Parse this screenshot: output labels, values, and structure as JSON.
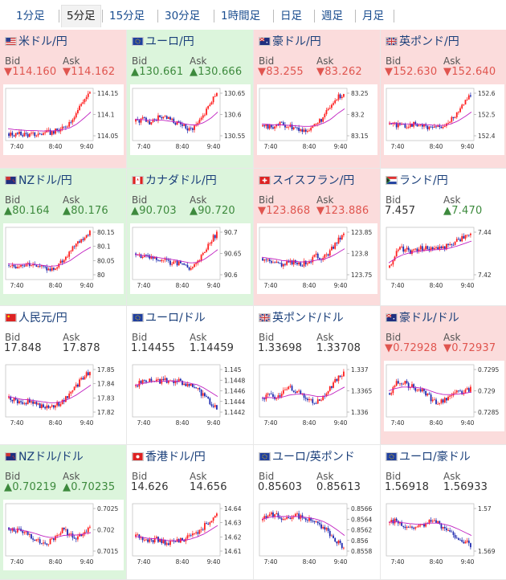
{
  "tabs": [
    "1分足",
    "5分足",
    "15分足",
    "30分足",
    "1時間足",
    "日足",
    "週足",
    "月足"
  ],
  "active_tab": 1,
  "labels": {
    "bid": "Bid",
    "ask": "Ask"
  },
  "colors": {
    "candle_up": "#ff2020",
    "candle_down": "#1f2bb0",
    "ma": "#c020c0",
    "bg_down": "#fbdcdc",
    "bg_up": "#dcf5dc",
    "price_down": "#e0554f",
    "price_up": "#3d8a3d"
  },
  "pairs": [
    {
      "name": "米ドル/円",
      "flag": "us",
      "bg": "down",
      "bid": "▼114.160",
      "ask": "▼114.162",
      "bid_dir": "red",
      "ask_dir": "red",
      "ticks": [
        "114.15",
        "114.1",
        "114.05"
      ],
      "xticks": [
        "7:40",
        "8:40",
        "9:40"
      ],
      "chart_data": {
        "type": "candlestick",
        "trend": [
          0.1,
          0.08,
          0.09,
          0.07,
          0.08,
          0.1,
          0.12,
          0.15,
          0.2,
          0.35,
          0.55,
          0.8,
          0.95
        ],
        "ma": [
          0.2,
          0.18,
          0.17,
          0.16,
          0.16,
          0.15,
          0.15,
          0.16,
          0.18,
          0.22,
          0.3,
          0.42,
          0.55
        ]
      }
    },
    {
      "name": "ユーロ/円",
      "flag": "eu",
      "bg": "up",
      "bid": "▲130.661",
      "ask": "▲130.666",
      "bid_dir": "green",
      "ask_dir": "green",
      "ticks": [
        "130.65",
        "130.6",
        "130.55"
      ],
      "xticks": [
        "7:40",
        "8:40",
        "9:40"
      ],
      "chart_data": {
        "type": "candlestick",
        "trend": [
          0.35,
          0.4,
          0.3,
          0.42,
          0.45,
          0.38,
          0.32,
          0.25,
          0.18,
          0.3,
          0.5,
          0.75,
          0.95
        ],
        "ma": [
          0.4,
          0.39,
          0.38,
          0.38,
          0.38,
          0.36,
          0.34,
          0.31,
          0.28,
          0.28,
          0.33,
          0.42,
          0.55
        ]
      }
    },
    {
      "name": "豪ドル/円",
      "flag": "au",
      "bg": "down",
      "bid": "▼83.255",
      "ask": "▼83.262",
      "bid_dir": "red",
      "ask_dir": "red",
      "ticks": [
        "83.25",
        "83.2",
        "83.15"
      ],
      "xticks": [
        "7:40",
        "8:40",
        "9:40"
      ],
      "chart_data": {
        "type": "candlestick",
        "trend": [
          0.25,
          0.22,
          0.28,
          0.3,
          0.25,
          0.2,
          0.15,
          0.22,
          0.3,
          0.45,
          0.65,
          0.85,
          0.95
        ],
        "ma": [
          0.3,
          0.29,
          0.28,
          0.28,
          0.27,
          0.26,
          0.25,
          0.25,
          0.27,
          0.32,
          0.4,
          0.52,
          0.62
        ]
      }
    },
    {
      "name": "英ポンド/円",
      "flag": "gb",
      "bg": "down",
      "bid": "▼152.630",
      "ask": "▼152.640",
      "bid_dir": "red",
      "ask_dir": "red",
      "ticks": [
        "152.6",
        "152.5",
        "152.4"
      ],
      "xticks": [
        "7:40",
        "8:40",
        "9:40"
      ],
      "chart_data": {
        "type": "candlestick",
        "trend": [
          0.3,
          0.28,
          0.25,
          0.28,
          0.3,
          0.26,
          0.24,
          0.22,
          0.25,
          0.35,
          0.55,
          0.75,
          0.92
        ],
        "ma": [
          0.32,
          0.31,
          0.3,
          0.3,
          0.3,
          0.29,
          0.28,
          0.27,
          0.27,
          0.3,
          0.36,
          0.45,
          0.55
        ]
      }
    },
    {
      "name": "NZドル/円",
      "flag": "nz",
      "bg": "up",
      "bid": "▲80.164",
      "ask": "▲80.176",
      "bid_dir": "green",
      "ask_dir": "green",
      "ticks": [
        "80.15",
        "80.1",
        "80.05",
        "80"
      ],
      "xticks": [
        "7:40",
        "8:40",
        "9:40"
      ],
      "chart_data": {
        "type": "candlestick",
        "trend": [
          0.25,
          0.22,
          0.28,
          0.3,
          0.24,
          0.18,
          0.15,
          0.22,
          0.35,
          0.55,
          0.7,
          0.82,
          0.92
        ],
        "ma": [
          0.28,
          0.27,
          0.27,
          0.28,
          0.27,
          0.25,
          0.23,
          0.24,
          0.28,
          0.35,
          0.45,
          0.55,
          0.63
        ]
      }
    },
    {
      "name": "カナダドル/円",
      "flag": "ca",
      "bg": "up",
      "bid": "▲90.703",
      "ask": "▲90.720",
      "bid_dir": "green",
      "ask_dir": "green",
      "ticks": [
        "90.7",
        "90.65",
        "90.6"
      ],
      "xticks": [
        "7:40",
        "8:40",
        "9:40"
      ],
      "chart_data": {
        "type": "candlestick",
        "trend": [
          0.5,
          0.45,
          0.4,
          0.38,
          0.35,
          0.32,
          0.3,
          0.25,
          0.2,
          0.3,
          0.5,
          0.75,
          0.92
        ],
        "ma": [
          0.48,
          0.46,
          0.44,
          0.42,
          0.4,
          0.38,
          0.36,
          0.33,
          0.3,
          0.31,
          0.37,
          0.47,
          0.58
        ]
      }
    },
    {
      "name": "スイスフラン/円",
      "flag": "ch",
      "bg": "down",
      "bid": "▼123.868",
      "ask": "▼123.886",
      "bid_dir": "red",
      "ask_dir": "red",
      "ticks": [
        "123.85",
        "123.8",
        "123.75"
      ],
      "xticks": [
        "7:40",
        "8:40",
        "9:40"
      ],
      "chart_data": {
        "type": "candlestick",
        "trend": [
          0.4,
          0.35,
          0.3,
          0.25,
          0.3,
          0.32,
          0.28,
          0.35,
          0.45,
          0.4,
          0.55,
          0.75,
          0.9
        ],
        "ma": [
          0.42,
          0.4,
          0.38,
          0.35,
          0.34,
          0.33,
          0.32,
          0.33,
          0.36,
          0.38,
          0.43,
          0.51,
          0.6
        ]
      }
    },
    {
      "name": "ランド/円",
      "flag": "za",
      "bg": "neutral",
      "bid": "7.457",
      "ask": "▲7.470",
      "bid_dir": "plain",
      "ask_dir": "green",
      "ticks": [
        "7.44",
        "7.42"
      ],
      "xticks": [
        "7:40",
        "8:40",
        "9:40"
      ],
      "chart_data": {
        "type": "candlestick",
        "trend": [
          0.2,
          0.55,
          0.6,
          0.55,
          0.58,
          0.62,
          0.6,
          0.58,
          0.62,
          0.7,
          0.78,
          0.85,
          0.92
        ],
        "ma": [
          0.3,
          0.4,
          0.47,
          0.51,
          0.54,
          0.56,
          0.57,
          0.58,
          0.59,
          0.62,
          0.66,
          0.71,
          0.76
        ]
      }
    },
    {
      "name": "人民元/円",
      "flag": "cn",
      "bg": "neutral",
      "bid": "17.848",
      "ask": "17.878",
      "bid_dir": "plain",
      "ask_dir": "plain",
      "ticks": [
        "17.85",
        "17.84",
        "17.83",
        "17.82"
      ],
      "xticks": [
        "7:40",
        "8:40",
        "9:40"
      ],
      "chart_data": {
        "type": "candlestick",
        "trend": [
          0.35,
          0.3,
          0.25,
          0.28,
          0.22,
          0.18,
          0.15,
          0.2,
          0.3,
          0.45,
          0.6,
          0.78,
          0.92
        ],
        "ma": [
          0.38,
          0.35,
          0.32,
          0.31,
          0.29,
          0.27,
          0.25,
          0.25,
          0.28,
          0.34,
          0.42,
          0.52,
          0.62
        ]
      }
    },
    {
      "name": "ユーロ/ドル",
      "flag": "eu",
      "bg": "neutral",
      "bid": "1.14455",
      "ask": "1.14459",
      "bid_dir": "plain",
      "ask_dir": "plain",
      "ticks": [
        "1.145",
        "1.1448",
        "1.1446",
        "1.1444",
        "1.1442"
      ],
      "xticks": [
        "7:40",
        "8:40",
        "9:40"
      ],
      "chart_data": {
        "type": "candlestick",
        "trend": [
          0.6,
          0.7,
          0.75,
          0.72,
          0.7,
          0.73,
          0.7,
          0.68,
          0.6,
          0.55,
          0.4,
          0.25,
          0.15
        ],
        "ma": [
          0.62,
          0.65,
          0.68,
          0.7,
          0.7,
          0.71,
          0.7,
          0.69,
          0.66,
          0.63,
          0.56,
          0.47,
          0.38
        ]
      }
    },
    {
      "name": "英ポンド/ドル",
      "flag": "gb",
      "bg": "neutral",
      "bid": "1.33698",
      "ask": "1.33708",
      "bid_dir": "plain",
      "ask_dir": "plain",
      "ticks": [
        "1.337",
        "1.3365",
        "1.336"
      ],
      "xticks": [
        "7:40",
        "8:40",
        "9:40"
      ],
      "chart_data": {
        "type": "candlestick",
        "trend": [
          0.35,
          0.4,
          0.3,
          0.45,
          0.55,
          0.5,
          0.4,
          0.3,
          0.25,
          0.4,
          0.55,
          0.75,
          0.85
        ],
        "ma": [
          0.35,
          0.36,
          0.35,
          0.37,
          0.41,
          0.43,
          0.43,
          0.41,
          0.38,
          0.38,
          0.42,
          0.5,
          0.58
        ]
      }
    },
    {
      "name": "豪ドル/ドル",
      "flag": "au",
      "bg": "down",
      "bid": "▼0.72928",
      "ask": "▼0.72937",
      "bid_dir": "red",
      "ask_dir": "red",
      "ticks": [
        "0.7295",
        "0.729",
        "0.7285"
      ],
      "xticks": [
        "7:40",
        "8:40",
        "9:40"
      ],
      "chart_data": {
        "type": "candlestick",
        "trend": [
          0.45,
          0.65,
          0.7,
          0.6,
          0.55,
          0.5,
          0.35,
          0.25,
          0.3,
          0.4,
          0.45,
          0.5,
          0.55
        ],
        "ma": [
          0.5,
          0.55,
          0.58,
          0.58,
          0.57,
          0.55,
          0.5,
          0.45,
          0.42,
          0.42,
          0.43,
          0.45,
          0.47
        ]
      }
    },
    {
      "name": "NZドル/ドル",
      "flag": "nz",
      "bg": "up",
      "bid": "▲0.70219",
      "ask": "▲0.70235",
      "bid_dir": "green",
      "ask_dir": "green",
      "ticks": [
        "0.7025",
        "0.702",
        "0.7015"
      ],
      "xticks": [
        "7:40",
        "8:40",
        "9:40"
      ],
      "chart_data": {
        "type": "candlestick",
        "trend": [
          0.55,
          0.5,
          0.45,
          0.4,
          0.3,
          0.2,
          0.25,
          0.35,
          0.5,
          0.4,
          0.35,
          0.45,
          0.55
        ],
        "ma": [
          0.52,
          0.51,
          0.49,
          0.46,
          0.42,
          0.37,
          0.34,
          0.34,
          0.38,
          0.39,
          0.39,
          0.41,
          0.44
        ]
      }
    },
    {
      "name": "香港ドル/円",
      "flag": "hk",
      "bg": "neutral",
      "bid": "14.626",
      "ask": "14.656",
      "bid_dir": "plain",
      "ask_dir": "plain",
      "ticks": [
        "14.64",
        "14.63",
        "14.62",
        "14.61"
      ],
      "xticks": [
        "7:40",
        "8:40",
        "9:40"
      ],
      "chart_data": {
        "type": "candlestick",
        "trend": [
          0.35,
          0.32,
          0.28,
          0.3,
          0.25,
          0.22,
          0.28,
          0.3,
          0.35,
          0.45,
          0.55,
          0.7,
          0.85
        ],
        "ma": [
          0.36,
          0.34,
          0.32,
          0.31,
          0.29,
          0.27,
          0.27,
          0.28,
          0.3,
          0.35,
          0.41,
          0.5,
          0.59
        ]
      }
    },
    {
      "name": "ユーロ/英ポンド",
      "flag": "eu",
      "bg": "neutral",
      "bid": "0.85603",
      "ask": "0.85613",
      "bid_dir": "plain",
      "ask_dir": "plain",
      "ticks": [
        "0.8566",
        "0.8564",
        "0.8562",
        "0.856",
        "0.8558"
      ],
      "xticks": [
        "7:40",
        "8:40",
        "9:40"
      ],
      "chart_data": {
        "type": "candlestick",
        "trend": [
          0.7,
          0.85,
          0.8,
          0.75,
          0.78,
          0.8,
          0.75,
          0.7,
          0.65,
          0.55,
          0.4,
          0.25,
          0.15
        ],
        "ma": [
          0.72,
          0.76,
          0.78,
          0.78,
          0.78,
          0.78,
          0.77,
          0.75,
          0.72,
          0.67,
          0.59,
          0.49,
          0.38
        ]
      }
    },
    {
      "name": "ユーロ/豪ドル",
      "flag": "eu",
      "bg": "neutral",
      "bid": "1.56918",
      "ask": "1.56933",
      "bid_dir": "plain",
      "ask_dir": "plain",
      "ticks": [
        "1.57",
        "1.569"
      ],
      "xticks": [
        "7:40",
        "8:40",
        "9:40"
      ],
      "chart_data": {
        "type": "candlestick",
        "trend": [
          0.65,
          0.7,
          0.6,
          0.55,
          0.58,
          0.62,
          0.7,
          0.65,
          0.55,
          0.45,
          0.35,
          0.25,
          0.18
        ],
        "ma": [
          0.66,
          0.67,
          0.65,
          0.63,
          0.62,
          0.62,
          0.64,
          0.64,
          0.62,
          0.58,
          0.52,
          0.45,
          0.38
        ]
      }
    }
  ]
}
